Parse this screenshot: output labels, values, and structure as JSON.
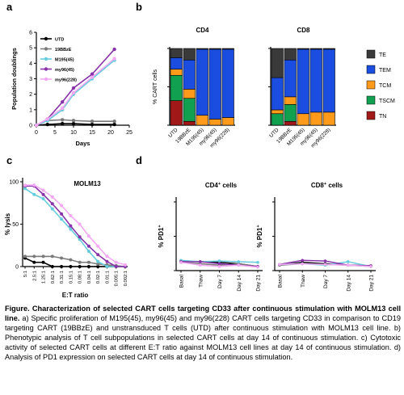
{
  "caption": {
    "bold": "Figure. Characterization of selected CART cells targeting CD33 after continuous stimulation with MOLM13 cell line.",
    "text": " a) Specific proliferation of M195(45), my96(45) and my96(228) CART cells targeting CD33 in comparison to CD19 targeting CART (19BBzE) and unstransduced T cells (UTD) after continuous stimulation with MOLM13 cell line. b) Phenotypic analysis of T cell subpopulations in selected CART cells at day 14 of continuous stimulation. c) Cytotoxic activity of selected CART cells at different E:T ratio against MOLM13 cell lines at day 14 of continuous stimulation. d) Analysis of PD1 expression on selected CART cells at day 14 of continuous stimulation."
  },
  "panel_letters": [
    "a",
    "b",
    "c",
    "d"
  ],
  "colors": {
    "UTD": "#000000",
    "19BBzE": "#7a7a7a",
    "M195(45)": "#66ccdd",
    "my96(45)": "#8833aa",
    "my96(228)": "#f2a8f2",
    "TE": "#3a3a3a",
    "TEM": "#1a4de0",
    "TCM": "#ff9a1a",
    "TSCM": "#10a050",
    "TN": "#a01818"
  },
  "chart_data": [
    {
      "panel": "a",
      "type": "line",
      "xlabel": "Days",
      "ylabel": "Population doublings",
      "xlim": [
        0,
        25
      ],
      "ylim": [
        0,
        6
      ],
      "xticks": [
        "0",
        "5",
        "10",
        "15",
        "20",
        "25"
      ],
      "yticks": [
        "0",
        "1",
        "2",
        "3",
        "4",
        "5",
        "6"
      ],
      "x": [
        0,
        3,
        7,
        10,
        15,
        21
      ],
      "series": [
        {
          "name": "UTD",
          "values": [
            0,
            0.05,
            0.1,
            0.1,
            0.05,
            0.05
          ]
        },
        {
          "name": "19BBzE",
          "values": [
            0,
            0.3,
            0.35,
            0.3,
            0.25,
            0.25
          ]
        },
        {
          "name": "M195(45)",
          "values": [
            0,
            0.3,
            1.0,
            2.0,
            3.0,
            4.2
          ]
        },
        {
          "name": "my96(45)",
          "values": [
            0,
            0.4,
            1.5,
            2.4,
            3.3,
            4.9
          ]
        },
        {
          "name": "my96(228)",
          "values": [
            0,
            0.4,
            1.1,
            2.1,
            3.1,
            4.3
          ]
        }
      ]
    },
    {
      "panel": "b",
      "type": "bar",
      "stacked": true,
      "ylabel": "% CART cells",
      "ylim": [
        0,
        100
      ],
      "categories": [
        "UTD",
        "19BBzE",
        "M195(45)",
        "my96(45)",
        "my96(228)"
      ],
      "legend": [
        "TE",
        "TEM",
        "TCM",
        "TSCM",
        "TN"
      ],
      "legend_position": "right",
      "groups": [
        {
          "title": "CD4",
          "series": [
            {
              "name": "TN",
              "values": [
                32,
                5,
                0,
                0,
                0
              ]
            },
            {
              "name": "TSCM",
              "values": [
                33,
                30,
                0,
                0,
                0
              ]
            },
            {
              "name": "TCM",
              "values": [
                8,
                12,
                13,
                8,
                10
              ]
            },
            {
              "name": "TEM",
              "values": [
                15,
                38,
                86,
                91,
                89
              ]
            },
            {
              "name": "TE",
              "values": [
                12,
                15,
                1,
                1,
                1
              ]
            }
          ]
        },
        {
          "title": "CD8",
          "series": [
            {
              "name": "TN",
              "values": [
                0,
                5,
                0,
                0,
                0
              ]
            },
            {
              "name": "TSCM",
              "values": [
                15,
                22,
                0,
                0,
                0
              ]
            },
            {
              "name": "TCM",
              "values": [
                5,
                10,
                15,
                17,
                17
              ]
            },
            {
              "name": "TEM",
              "values": [
                42,
                48,
                84,
                82,
                82
              ]
            },
            {
              "name": "TE",
              "values": [
                38,
                15,
                1,
                1,
                1
              ]
            }
          ]
        }
      ]
    },
    {
      "panel": "c",
      "type": "line",
      "title": "MOLM13",
      "xlabel": "E:T ratio",
      "ylabel": "% lysis",
      "ylim": [
        0,
        100
      ],
      "yticks": [
        "0",
        "50",
        "100"
      ],
      "x": [
        "5:1",
        "2.5:1",
        "1.25:1",
        "0.62:1",
        "0.31:1",
        "0.15:1",
        "0.08:1",
        "0.04:1",
        "0.02:1",
        "0.01:1",
        "0.005:1",
        "0.002:1"
      ],
      "series": [
        {
          "name": "UTD",
          "values": [
            10,
            5,
            5,
            0,
            0,
            0,
            0,
            0,
            0,
            0,
            0,
            0
          ]
        },
        {
          "name": "19BBzE",
          "values": [
            12,
            12,
            12,
            12,
            10,
            8,
            5,
            5,
            3,
            2,
            1,
            0
          ]
        },
        {
          "name": "M195(45)",
          "values": [
            92,
            85,
            80,
            68,
            56,
            44,
            32,
            18,
            6,
            0,
            0,
            0
          ]
        },
        {
          "name": "my96(45)",
          "values": [
            95,
            95,
            85,
            74,
            62,
            48,
            35,
            24,
            14,
            6,
            0,
            0
          ]
        },
        {
          "name": "my96(228)",
          "values": [
            96,
            96,
            90,
            82,
            72,
            60,
            50,
            36,
            24,
            12,
            5,
            2
          ]
        }
      ]
    },
    {
      "panel": "d",
      "type": "line",
      "ylim": [
        0,
        100
      ],
      "yticks": [
        "0",
        "50",
        "100"
      ],
      "x": [
        "Basal",
        "Thaw",
        "Day 7",
        "Day 14",
        "Day 21"
      ],
      "subplots": [
        {
          "title_main": "CD4",
          "title_sup": "+",
          "title_rest": " cells",
          "ylabel_main": "% PD1",
          "ylabel_sup": "+",
          "series": [
            {
              "name": "UTD",
              "values": [
                14,
                13,
                12,
                10,
                6
              ]
            },
            {
              "name": "19BBzE",
              "values": [
                12,
                10,
                8,
                10,
                6
              ]
            },
            {
              "name": "M195(45)",
              "values": [
                15,
                13,
                14,
                13,
                12
              ]
            },
            {
              "name": "my96(45)",
              "values": [
                13,
                13,
                10,
                8,
                6
              ]
            },
            {
              "name": "my96(228)",
              "values": [
                12,
                8,
                6,
                8,
                5
              ]
            }
          ]
        },
        {
          "title_main": "CD8",
          "title_sup": "+",
          "title_rest": " cells",
          "ylabel_main": "% PD1",
          "ylabel_sup": "+",
          "series": [
            {
              "name": "UTD",
              "values": [
                8,
                12,
                10,
                8,
                7
              ]
            },
            {
              "name": "19BBzE",
              "values": [
                8,
                10,
                9,
                8,
                6
              ]
            },
            {
              "name": "M195(45)",
              "values": [
                9,
                10,
                8,
                13,
                6
              ]
            },
            {
              "name": "my96(45)",
              "values": [
                9,
                15,
                14,
                8,
                7
              ]
            },
            {
              "name": "my96(228)",
              "values": [
                9,
                10,
                9,
                8,
                6
              ]
            }
          ]
        }
      ]
    }
  ]
}
